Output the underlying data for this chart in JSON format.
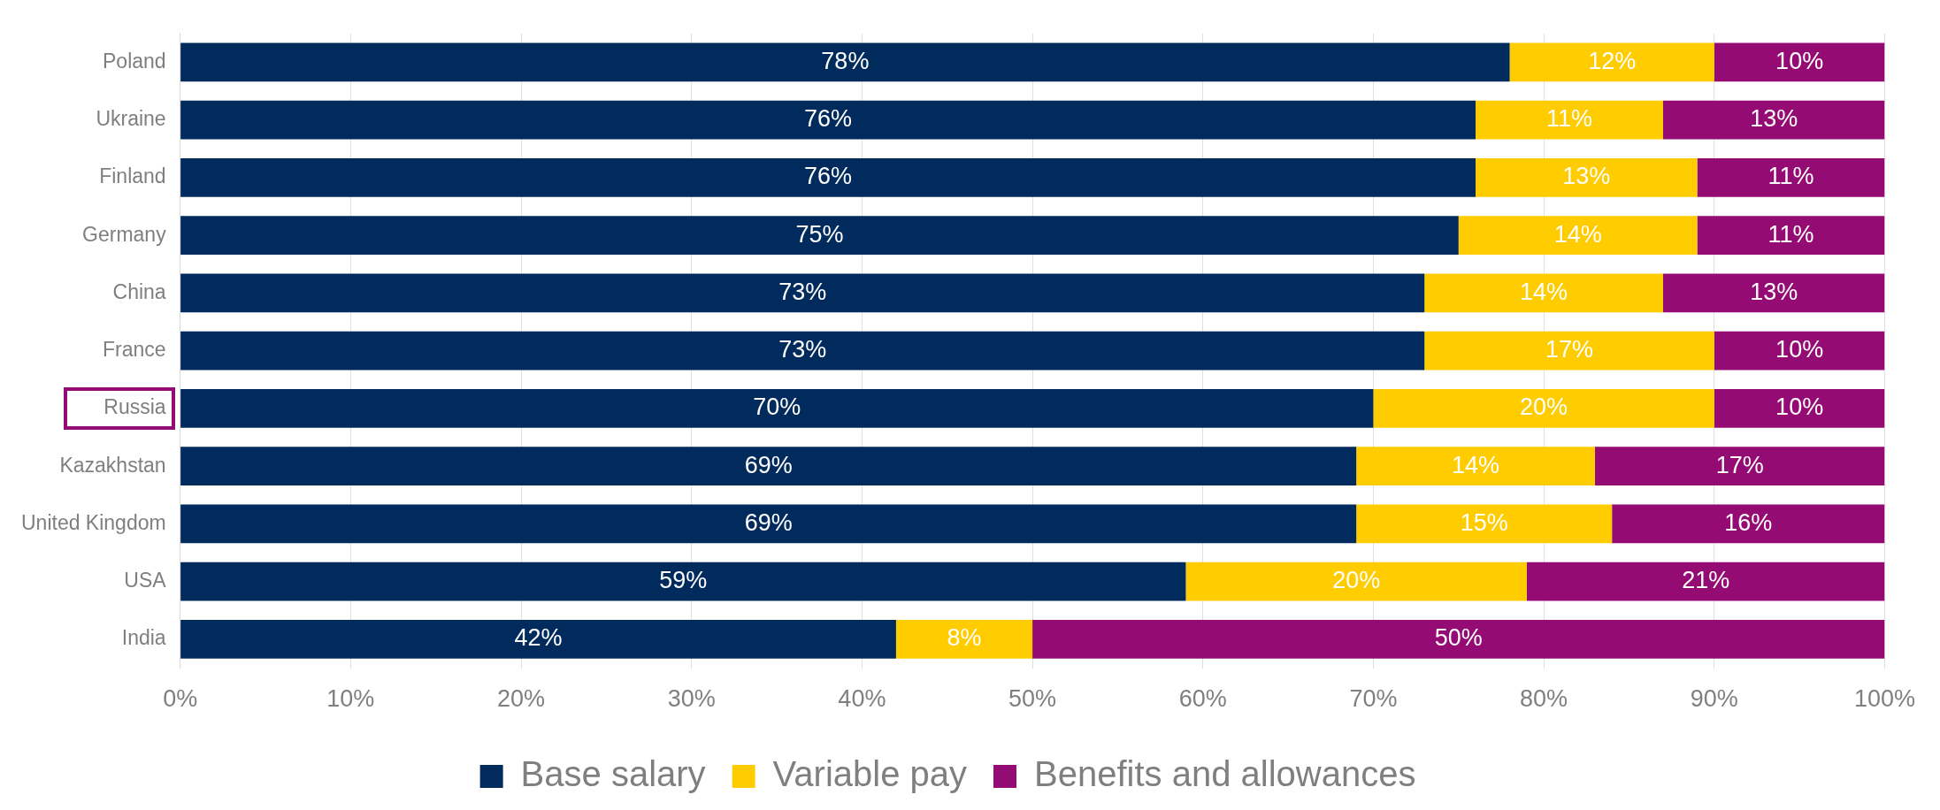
{
  "chart_data": {
    "type": "bar",
    "orientation": "horizontal",
    "stacked": true,
    "categories": [
      "Poland",
      "Ukraine",
      "Finland",
      "Germany",
      "China",
      "France",
      "Russia",
      "Kazakhstan",
      "United Kingdom",
      "USA",
      "India"
    ],
    "series": [
      {
        "name": "Base salary",
        "color": "#002b5c",
        "values": [
          78,
          76,
          76,
          75,
          73,
          73,
          70,
          69,
          69,
          59,
          42
        ],
        "value_labels": [
          "78%",
          "76%",
          "76%",
          "75%",
          "73%",
          "73%",
          "70%",
          "69%",
          "69%",
          "59%",
          "42%"
        ]
      },
      {
        "name": "Variable pay",
        "color": "#ffcc00",
        "values": [
          12,
          11,
          13,
          14,
          14,
          17,
          20,
          14,
          15,
          20,
          8
        ],
        "value_labels": [
          "12%",
          "11%",
          "13%",
          "14%",
          "14%",
          "17%",
          "20%",
          "14%",
          "15%",
          "20%",
          "8%"
        ]
      },
      {
        "name": "Benefits and allowances",
        "color": "#930b73",
        "values": [
          10,
          13,
          11,
          11,
          13,
          10,
          10,
          17,
          16,
          21,
          50
        ],
        "value_labels": [
          "10%",
          "13%",
          "11%",
          "11%",
          "13%",
          "10%",
          "10%",
          "17%",
          "16%",
          "21%",
          "50%"
        ]
      }
    ],
    "xlim": [
      0,
      100
    ],
    "xticks": [
      {
        "value": 0,
        "label": "0%"
      },
      {
        "value": 10,
        "label": "10%"
      },
      {
        "value": 20,
        "label": "20%"
      },
      {
        "value": 30,
        "label": "30%"
      },
      {
        "value": 40,
        "label": "40%"
      },
      {
        "value": 50,
        "label": "50%"
      },
      {
        "value": 60,
        "label": "60%"
      },
      {
        "value": 70,
        "label": "70%"
      },
      {
        "value": 80,
        "label": "80%"
      },
      {
        "value": 90,
        "label": "90%"
      },
      {
        "value": 100,
        "label": "100%"
      }
    ],
    "grid": "x",
    "legend": "bottom"
  }
}
